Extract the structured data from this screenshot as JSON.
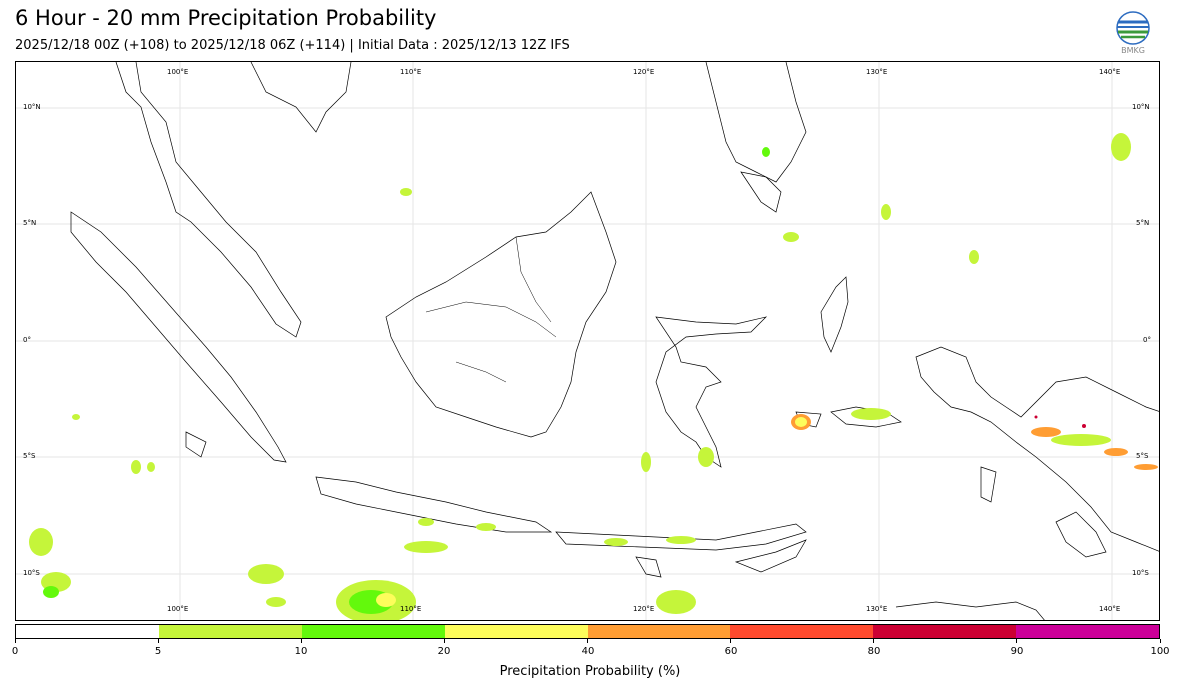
{
  "header": {
    "title": "6 Hour - 20 mm Precipitation Probability",
    "subtitle": "2025/12/18 00Z (+108) to 2025/12/18 06Z (+114) | Initial Data : 2025/12/13 12Z IFS",
    "logo_text": "BMKG"
  },
  "map": {
    "lon_labels": [
      "100°E",
      "110°E",
      "120°E",
      "130°E",
      "140°E"
    ],
    "lat_labels": [
      "10°N",
      "5°N",
      "0°",
      "5°S",
      "10°S"
    ],
    "colors": {
      "land_outline": "#000000",
      "grid": "#dddddd"
    }
  },
  "legend": {
    "label": "Precipitation Probability (%)",
    "ticks": [
      "0",
      "5",
      "10",
      "20",
      "40",
      "60",
      "80",
      "90",
      "100"
    ],
    "colors": [
      "#ffffff",
      "#c5f53a",
      "#63f90c",
      "#fdfd5b",
      "#ff9d33",
      "#ff4a2d",
      "#cc0033",
      "#cc0099"
    ]
  }
}
